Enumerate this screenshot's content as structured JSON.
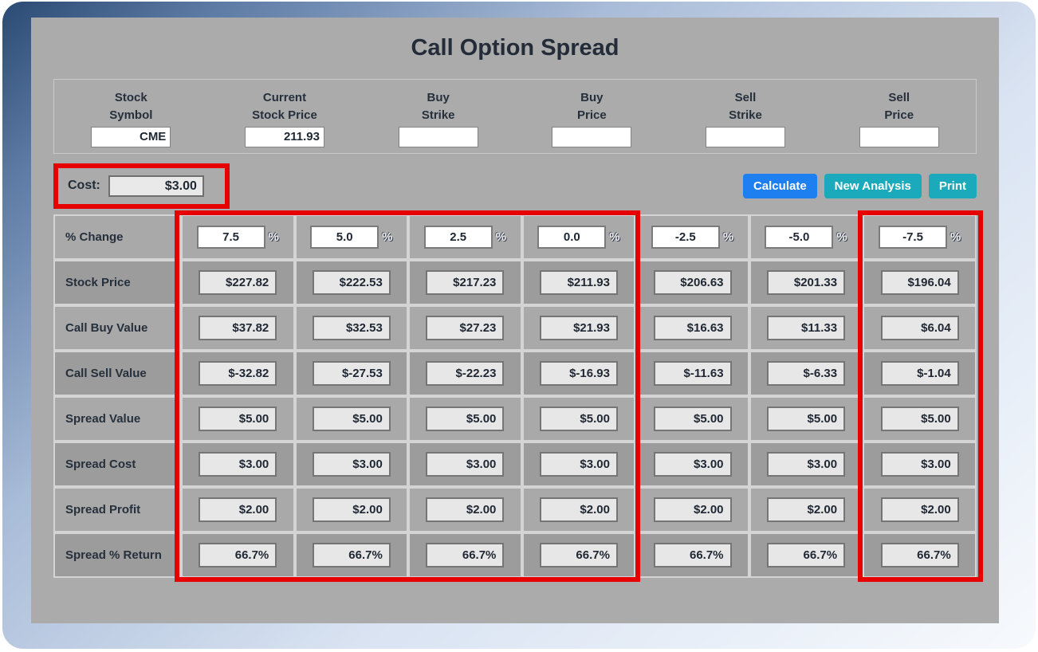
{
  "title": "Call Option Spread",
  "colors": {
    "highlight_red": "#e60000",
    "calculate_blue": "#1e7ff0",
    "action_teal": "#1ba9bc",
    "panel_gray": "#ababab"
  },
  "header_fields": [
    {
      "name": "stock-symbol",
      "label_line1": "Stock",
      "label_line2": "Symbol",
      "value": "CME"
    },
    {
      "name": "current-stock-price",
      "label_line1": "Current",
      "label_line2": "Stock Price",
      "value": "211.93"
    },
    {
      "name": "buy-strike",
      "label_line1": "Buy",
      "label_line2": "Strike",
      "value": ""
    },
    {
      "name": "buy-price",
      "label_line1": "Buy",
      "label_line2": "Price",
      "value": ""
    },
    {
      "name": "sell-strike",
      "label_line1": "Sell",
      "label_line2": "Strike",
      "value": ""
    },
    {
      "name": "sell-price",
      "label_line1": "Sell",
      "label_line2": "Price",
      "value": ""
    }
  ],
  "cost": {
    "label": "Cost:",
    "value": "$3.00"
  },
  "buttons": [
    {
      "label": "Calculate",
      "style": "primary"
    },
    {
      "label": "New Analysis",
      "style": "teal"
    },
    {
      "label": "Print",
      "style": "teal"
    }
  ],
  "table": {
    "pct_suffix": "%",
    "columns": [
      "7.5",
      "5.0",
      "2.5",
      "0.0",
      "-2.5",
      "-5.0",
      "-7.5"
    ],
    "rows": [
      {
        "label": "% Change",
        "type": "input",
        "values": [
          "7.5",
          "5.0",
          "2.5",
          "0.0",
          "-2.5",
          "-5.0",
          "-7.5"
        ]
      },
      {
        "label": "Stock Price",
        "type": "readonly",
        "values": [
          "$227.82",
          "$222.53",
          "$217.23",
          "$211.93",
          "$206.63",
          "$201.33",
          "$196.04"
        ]
      },
      {
        "label": "Call Buy Value",
        "type": "readonly",
        "values": [
          "$37.82",
          "$32.53",
          "$27.23",
          "$21.93",
          "$16.63",
          "$11.33",
          "$6.04"
        ]
      },
      {
        "label": "Call Sell Value",
        "type": "readonly",
        "values": [
          "$-32.82",
          "$-27.53",
          "$-22.23",
          "$-16.93",
          "$-11.63",
          "$-6.33",
          "$-1.04"
        ]
      },
      {
        "label": "Spread Value",
        "type": "readonly",
        "values": [
          "$5.00",
          "$5.00",
          "$5.00",
          "$5.00",
          "$5.00",
          "$5.00",
          "$5.00"
        ]
      },
      {
        "label": "Spread Cost",
        "type": "readonly",
        "values": [
          "$3.00",
          "$3.00",
          "$3.00",
          "$3.00",
          "$3.00",
          "$3.00",
          "$3.00"
        ]
      },
      {
        "label": "Spread Profit",
        "type": "readonly",
        "values": [
          "$2.00",
          "$2.00",
          "$2.00",
          "$2.00",
          "$2.00",
          "$2.00",
          "$2.00"
        ]
      },
      {
        "label": "Spread % Return",
        "type": "readonly",
        "values": [
          "66.7%",
          "66.7%",
          "66.7%",
          "66.7%",
          "66.7%",
          "66.7%",
          "66.7%"
        ]
      }
    ]
  },
  "highlights": {
    "cost_box": "red outline around cost field",
    "columns_left_box": "red outline around columns 7.5 to 0.0",
    "column_right_box": "red outline around column -7.5"
  }
}
